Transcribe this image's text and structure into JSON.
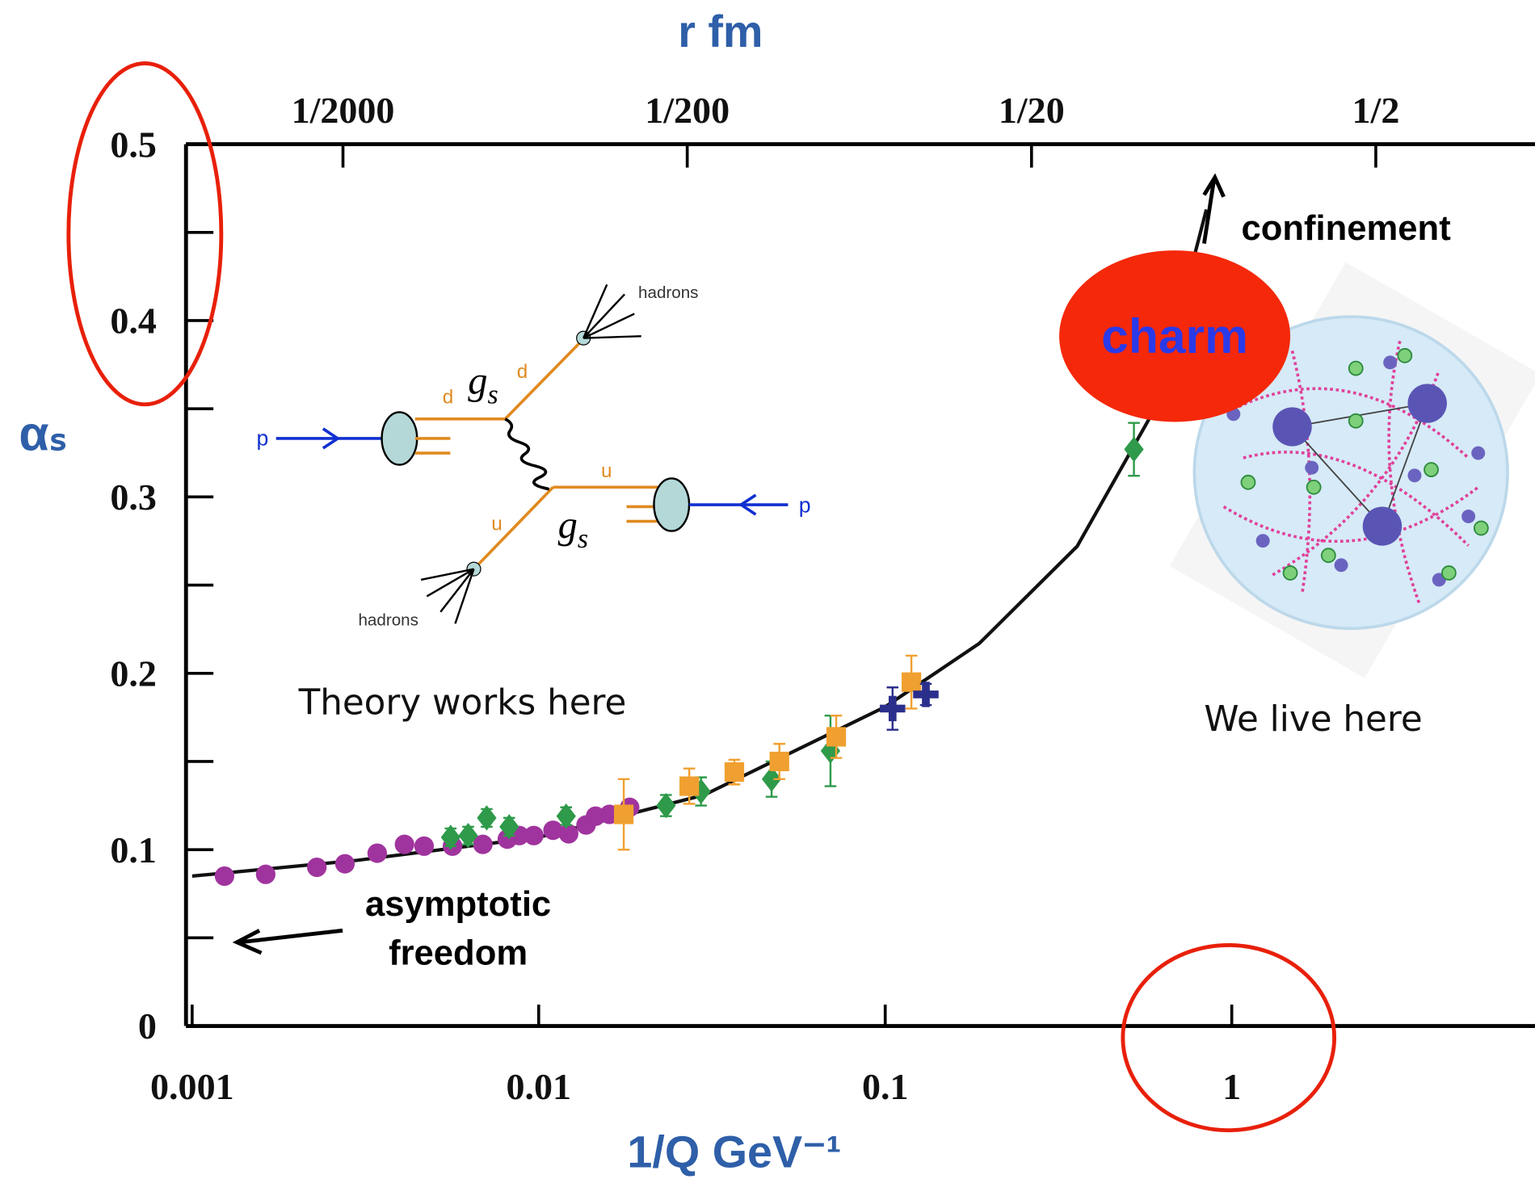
{
  "chart_data": {
    "type": "scatter",
    "x_label": "1/Q GeV⁻¹",
    "y_label": "αₛ",
    "x2_label": "r fm",
    "xscale": "log",
    "x2scale": "log",
    "xlim": [
      0.00096,
      7.5
    ],
    "xticks": [
      0.001,
      0.01,
      0.1,
      1
    ],
    "x2lim": [
      0.000175,
      1.45
    ],
    "x2ticks": [
      {
        "value": 0.0005,
        "label": "1/2000"
      },
      {
        "value": 0.005,
        "label": "1/200"
      },
      {
        "value": 0.05,
        "label": "1/20"
      },
      {
        "value": 0.5,
        "label": "1/2"
      }
    ],
    "ylim": [
      0,
      0.5
    ],
    "yticks": [
      0,
      0.1,
      0.2,
      0.3,
      0.4,
      0.5
    ],
    "yminorticks": [
      0.05,
      0.15,
      0.25,
      0.35,
      0.45
    ],
    "grid": false,
    "curve": {
      "color": "#111111",
      "x": [
        0.001,
        0.003,
        0.01,
        0.03,
        0.1,
        0.187,
        0.358,
        0.6,
        0.845
      ],
      "values": [
        0.085,
        0.094,
        0.107,
        0.131,
        0.181,
        0.217,
        0.272,
        0.35,
        0.463
      ]
    },
    "series": [
      {
        "marker": "circle",
        "color": "#a0349e",
        "x": [
          0.00124,
          0.00163,
          0.00229,
          0.00276,
          0.00342,
          0.0041,
          0.00467,
          0.00564,
          0.0069,
          0.00812,
          0.00879,
          0.00968,
          0.011,
          0.0122,
          0.0137,
          0.0146,
          0.016,
          0.0183
        ],
        "values": [
          0.085,
          0.086,
          0.09,
          0.092,
          0.098,
          0.103,
          0.102,
          0.102,
          0.103,
          0.106,
          0.108,
          0.108,
          0.111,
          0.109,
          0.114,
          0.119,
          0.12,
          0.124
        ]
      },
      {
        "marker": "diamond",
        "color": "#2e9a4a",
        "x": [
          0.00557,
          0.00626,
          0.00708,
          0.00822,
          0.012,
          0.0233,
          0.0294,
          0.047,
          0.0695,
          0.522
        ],
        "values": [
          0.107,
          0.108,
          0.118,
          0.113,
          0.119,
          0.125,
          0.133,
          0.14,
          0.156,
          0.327
        ],
        "errors": [
          0.005,
          0.005,
          0.005,
          0.005,
          0.005,
          0.006,
          0.008,
          0.01,
          0.02,
          0.015
        ]
      },
      {
        "marker": "square",
        "color": "#f0a030",
        "x": [
          0.0176,
          0.0272,
          0.0367,
          0.0495,
          0.0722,
          0.119
        ],
        "values": [
          0.12,
          0.136,
          0.144,
          0.15,
          0.164,
          0.195
        ],
        "errors": [
          0.02,
          0.01,
          0.007,
          0.01,
          0.012,
          0.015
        ]
      },
      {
        "marker": "cross",
        "color": "#2b2f8c",
        "x": [
          0.105,
          0.131
        ],
        "values": [
          0.18,
          0.188
        ],
        "errors": [
          0.012,
          0.006
        ]
      }
    ],
    "annotations": {
      "confinement": "confinement",
      "asymptotic": [
        "asymptotic",
        "freedom"
      ],
      "theory": "Theory works here",
      "live": "We live here",
      "charm": "charm"
    }
  },
  "inset": {
    "hadrons": [
      "hadrons",
      "hadrons"
    ],
    "quarks": [
      "d",
      "d",
      "u",
      "u"
    ],
    "protons": [
      "p",
      "p"
    ],
    "couplings": [
      "g",
      "g"
    ],
    "coupling_sub": [
      "s",
      "s"
    ]
  }
}
